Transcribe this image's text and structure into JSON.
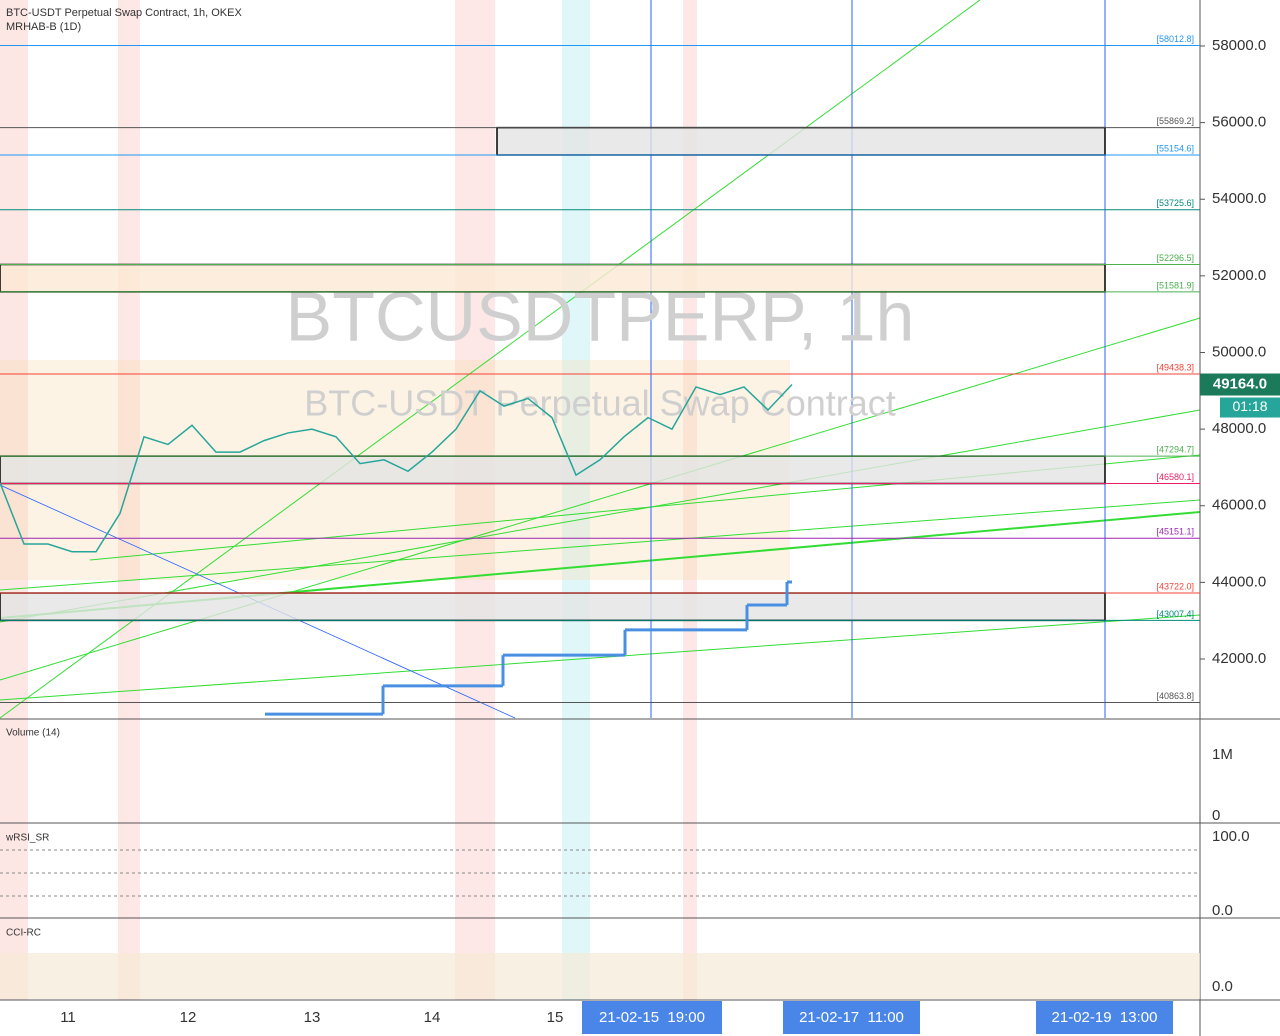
{
  "header": {
    "title": "BTC-USDT Perpetual Swap Contract, 1h, OKEX",
    "indicator": "MRHAB-B (1D)"
  },
  "watermark": {
    "symbol": "BTCUSDTPERP, 1h",
    "description": "BTC-USDT Perpetual Swap Contract"
  },
  "price_axis": {
    "ylim": [
      40460,
      59200
    ],
    "yticks": [
      {
        "value": 42000,
        "label": "42000.0"
      },
      {
        "value": 44000,
        "label": "44000.0"
      },
      {
        "value": 46000,
        "label": "46000.0"
      },
      {
        "value": 48000,
        "label": "48000.0"
      },
      {
        "value": 50000,
        "label": "50000.0"
      },
      {
        "value": 52000,
        "label": "52000.0"
      },
      {
        "value": 54000,
        "label": "54000.0"
      },
      {
        "value": 56000,
        "label": "56000.0"
      },
      {
        "value": 58000,
        "label": "58000.0"
      }
    ]
  },
  "levels": [
    {
      "value": 58012.8,
      "label": "[58012.8]",
      "color": "#2196f3"
    },
    {
      "value": 55869.2,
      "label": "[55869.2]",
      "color": "#555555"
    },
    {
      "value": 55154.6,
      "label": "[55154.6]",
      "color": "#2196f3"
    },
    {
      "value": 53725.6,
      "label": "[53725.6]",
      "color": "#00897b"
    },
    {
      "value": 52296.5,
      "label": "[52296.5]",
      "color": "#4caf50"
    },
    {
      "value": 51581.9,
      "label": "[51581.9]",
      "color": "#4caf50"
    },
    {
      "value": 49438.3,
      "label": "[49438.3]",
      "color": "#f44336"
    },
    {
      "value": 47294.7,
      "label": "[47294.7]",
      "color": "#4caf50"
    },
    {
      "value": 46580.1,
      "label": "[46580.1]",
      "color": "#e91e63"
    },
    {
      "value": 45151.1,
      "label": "[45151.1]",
      "color": "#9c27b0"
    },
    {
      "value": 43722.0,
      "label": "[43722.0]",
      "color": "#f44336"
    },
    {
      "value": 43007.4,
      "label": "[43007.4]",
      "color": "#00897b"
    },
    {
      "value": 40863.8,
      "label": "[40863.8]",
      "color": "#555555"
    }
  ],
  "closes": [
    46600,
    45000,
    45000,
    44800,
    44800,
    45800,
    47800,
    47600,
    48100,
    47400,
    47400,
    47700,
    47900,
    48000,
    47800,
    47100,
    47200,
    46900,
    47400,
    48000,
    49000,
    48600,
    48800,
    48300,
    46800,
    47200,
    47800,
    48300,
    48000,
    49100,
    48900,
    49100,
    48500,
    49164
  ],
  "daily_levels": [
    40560,
    41300,
    42100,
    42760,
    43410,
    44010
  ],
  "last_price": {
    "value": 49164,
    "label": "49164.0",
    "countdown": "01:18"
  },
  "x_axis": {
    "days": [
      "11",
      "12",
      "13",
      "14",
      "15"
    ],
    "markers": [
      "21-02-15  19:00",
      "21-02-17  11:00",
      "21-02-19  13:00"
    ]
  },
  "panes": {
    "volume": {
      "title": "Volume (14)",
      "ticks": [
        "1M",
        "0"
      ]
    },
    "rsi": {
      "title": "wRSI_SR",
      "ticks": [
        "100.0",
        "0.0"
      ]
    },
    "cci": {
      "title": "CCI-RC",
      "ticks": [
        "0.0"
      ]
    }
  }
}
